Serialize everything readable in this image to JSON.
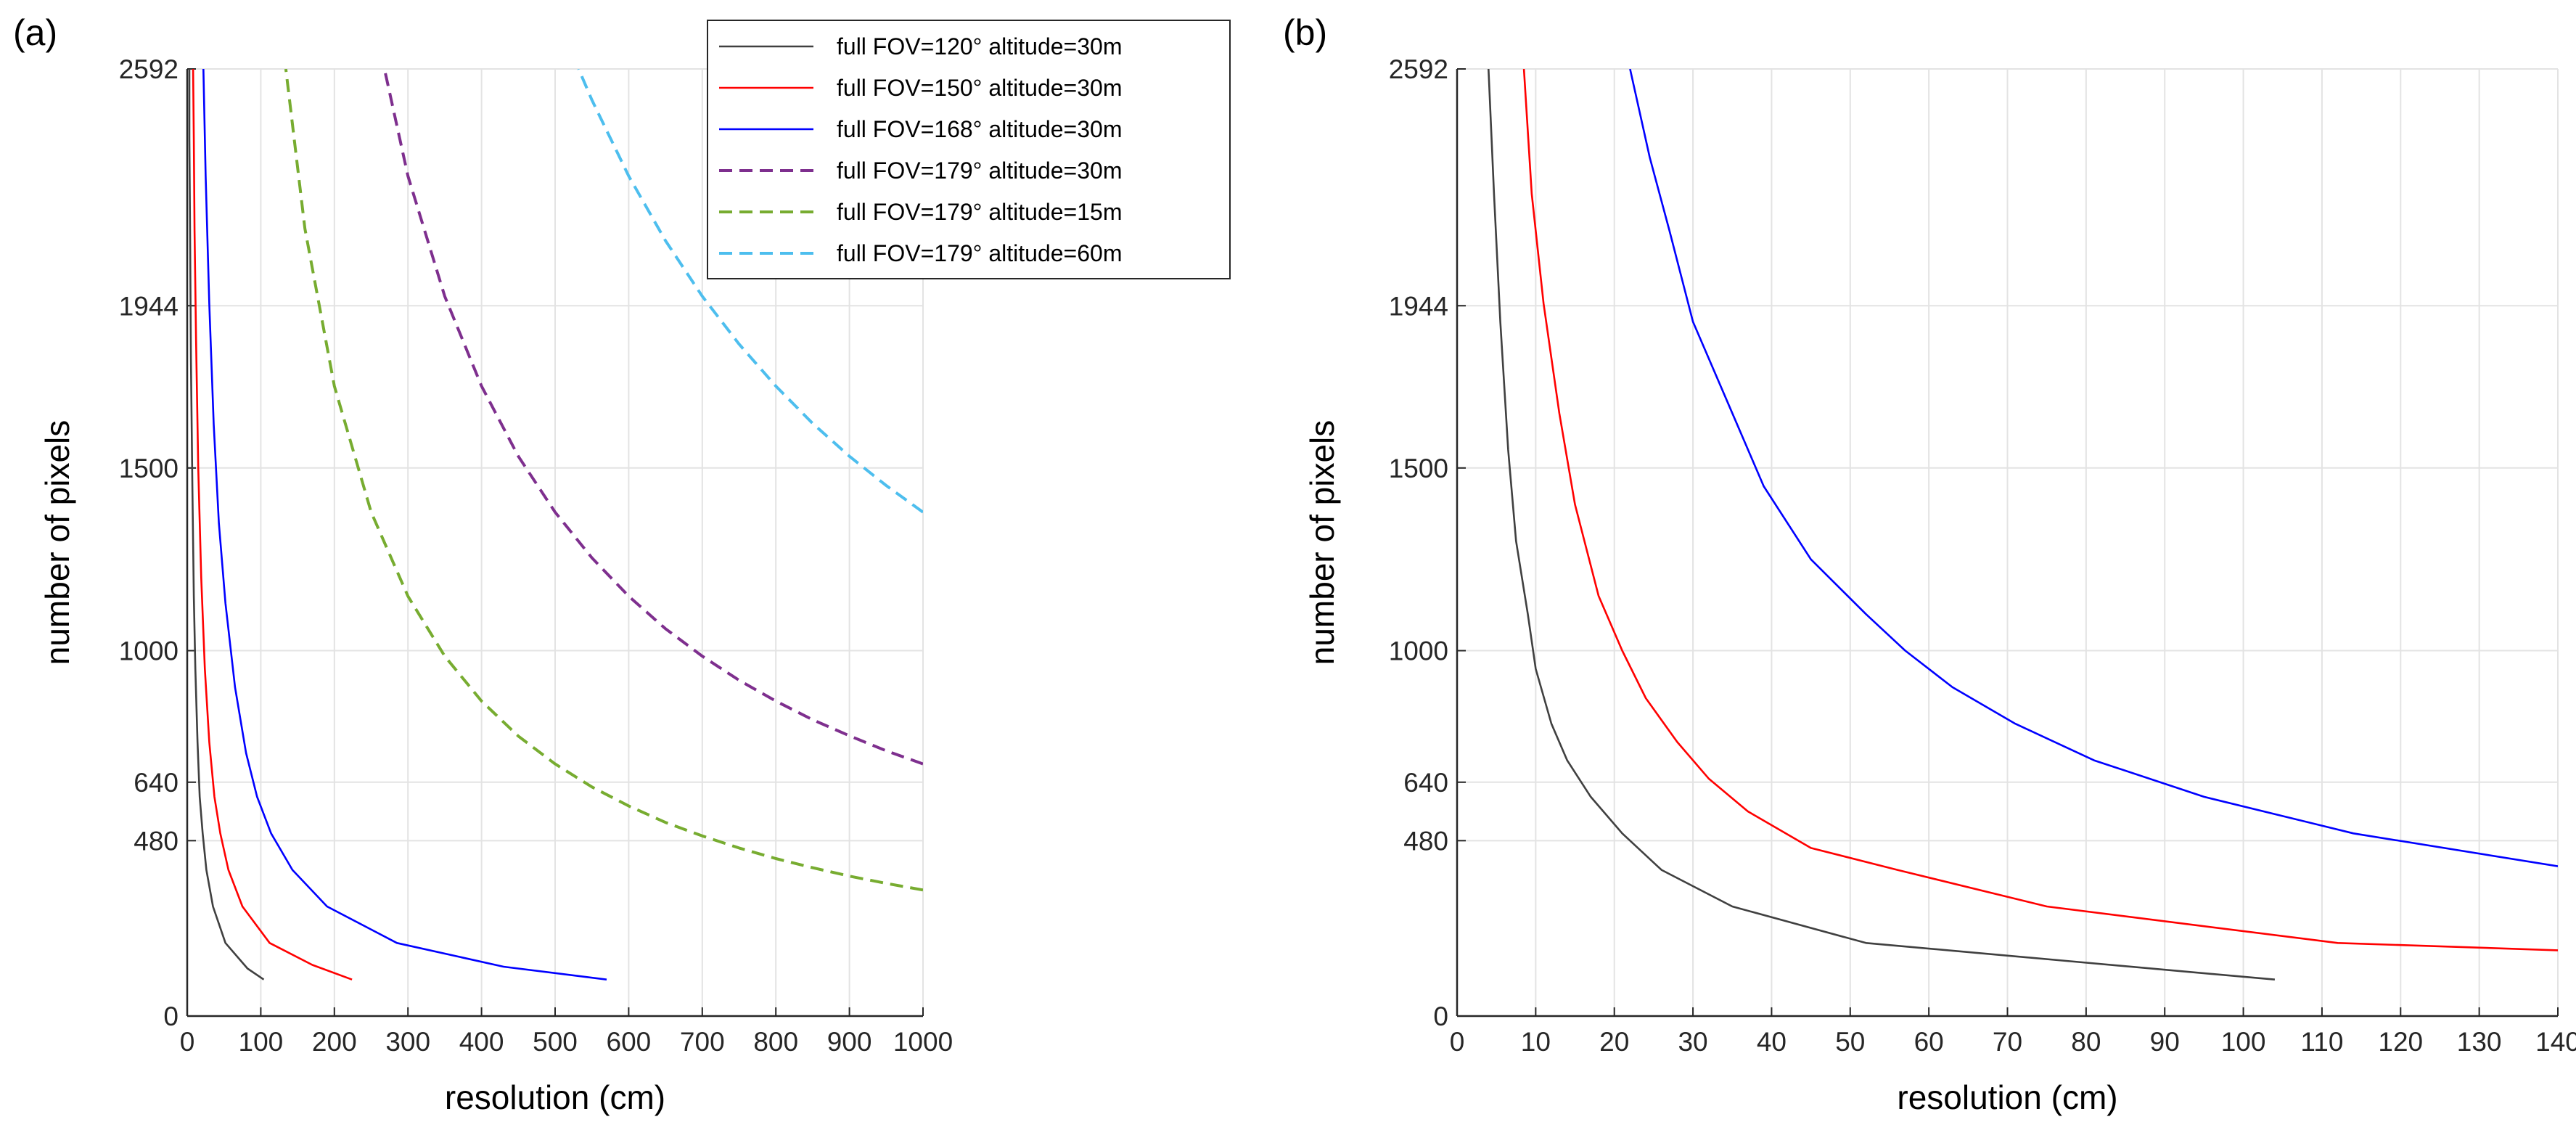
{
  "chart_data": [
    {
      "panel_label": "(a)",
      "type": "line",
      "xlabel": "resolution (cm)",
      "ylabel": "number of pixels",
      "xlim": [
        0,
        1000
      ],
      "ylim": [
        0,
        2592
      ],
      "xticks": [
        0,
        100,
        200,
        300,
        400,
        500,
        600,
        700,
        800,
        900,
        1000
      ],
      "yticks": [
        0,
        480,
        640,
        1000,
        1500,
        1944,
        2592
      ],
      "grid": true,
      "legend": "top-right",
      "series": [
        {
          "name": "full FOV=120° altitude=30m",
          "color": "#404040",
          "dash": "solid",
          "x": [
            104,
            82,
            52,
            35,
            26,
            21,
            17,
            14,
            11,
            9,
            7,
            5,
            4,
            3,
            3
          ],
          "y": [
            100,
            130,
            200,
            300,
            400,
            500,
            600,
            750,
            950,
            1150,
            1450,
            1800,
            2100,
            2400,
            2592
          ]
        },
        {
          "name": "full FOV=150° altitude=30m",
          "color": "#ff0000",
          "dash": "solid",
          "x": [
            224,
            170,
            112,
            75,
            56,
            45,
            37,
            30,
            24,
            19,
            15,
            12,
            10,
            9,
            8
          ],
          "y": [
            100,
            140,
            200,
            300,
            400,
            500,
            600,
            750,
            950,
            1200,
            1500,
            1850,
            2150,
            2400,
            2592
          ]
        },
        {
          "name": "full FOV=168° altitude=30m",
          "color": "#0000ff",
          "dash": "solid",
          "x": [
            570,
            430,
            285,
            190,
            143,
            114,
            95,
            80,
            65,
            52,
            43,
            36,
            30,
            25,
            22
          ],
          "y": [
            100,
            135,
            200,
            300,
            400,
            500,
            600,
            720,
            900,
            1130,
            1350,
            1620,
            1950,
            2300,
            2592
          ]
        },
        {
          "name": "full FOV=179° altitude=30m",
          "color": "#7e2f8e",
          "dash": "dashed",
          "x": [
            1000,
            950,
            900,
            850,
            800,
            750,
            700,
            650,
            600,
            550,
            500,
            450,
            400,
            350,
            300,
            268
          ],
          "y": [
            690,
            726,
            767,
            811,
            862,
            919,
            985,
            1060,
            1149,
            1254,
            1379,
            1532,
            1724,
            1970,
            2299,
            2592
          ]
        },
        {
          "name": "full FOV=179° altitude=15m",
          "color": "#77ac30",
          "dash": "dashed",
          "x": [
            1000,
            950,
            900,
            850,
            800,
            750,
            700,
            650,
            600,
            550,
            500,
            450,
            400,
            350,
            300,
            250,
            200,
            160,
            134
          ],
          "y": [
            345,
            363,
            383,
            406,
            431,
            460,
            493,
            530,
            575,
            627,
            690,
            766,
            862,
            985,
            1149,
            1379,
            1724,
            2155,
            2592
          ]
        },
        {
          "name": "full FOV=179° altitude=60m",
          "color": "#4dbeee",
          "dash": "dashed",
          "x": [
            1000,
            950,
            900,
            850,
            800,
            750,
            700,
            650,
            600,
            550,
            532
          ],
          "y": [
            1379,
            1452,
            1532,
            1622,
            1724,
            1839,
            1970,
            2122,
            2299,
            2507,
            2592
          ]
        }
      ]
    },
    {
      "panel_label": "(b)",
      "type": "line",
      "xlabel": "resolution (cm)",
      "ylabel": "number of pixels",
      "xlim": [
        0,
        140
      ],
      "ylim": [
        0,
        2592
      ],
      "xticks": [
        0,
        10,
        20,
        30,
        40,
        50,
        60,
        70,
        80,
        90,
        100,
        110,
        120,
        130,
        140
      ],
      "yticks": [
        0,
        480,
        640,
        1000,
        1500,
        1944,
        2592
      ],
      "grid": true,
      "series": [
        {
          "name": "full FOV=120° altitude=30m",
          "color": "#404040",
          "dash": "solid",
          "x": [
            104,
            78,
            52,
            35,
            26,
            21,
            17,
            14,
            12,
            10,
            9,
            7.5,
            6.5,
            5.5,
            4.7,
            4
          ],
          "y": [
            100,
            150,
            200,
            300,
            400,
            500,
            600,
            700,
            800,
            950,
            1100,
            1300,
            1550,
            1900,
            2250,
            2592
          ]
        },
        {
          "name": "full FOV=150° altitude=30m",
          "color": "#ff0000",
          "dash": "solid",
          "x": [
            140,
            112,
            75,
            56,
            45,
            37,
            32,
            28,
            24,
            21,
            18,
            15,
            13,
            11,
            9.5,
            8.5
          ],
          "y": [
            180,
            200,
            300,
            400,
            460,
            560,
            650,
            750,
            870,
            1000,
            1150,
            1400,
            1650,
            1950,
            2250,
            2592
          ]
        },
        {
          "name": "full FOV=168° altitude=30m",
          "color": "#0000ff",
          "dash": "solid",
          "x": [
            140,
            114,
            95,
            81,
            71,
            63,
            57,
            52,
            45,
            39,
            35,
            30,
            27,
            24.5,
            22
          ],
          "y": [
            410,
            500,
            600,
            700,
            800,
            900,
            1000,
            1100,
            1250,
            1450,
            1650,
            1900,
            2150,
            2350,
            2592
          ]
        }
      ]
    }
  ]
}
